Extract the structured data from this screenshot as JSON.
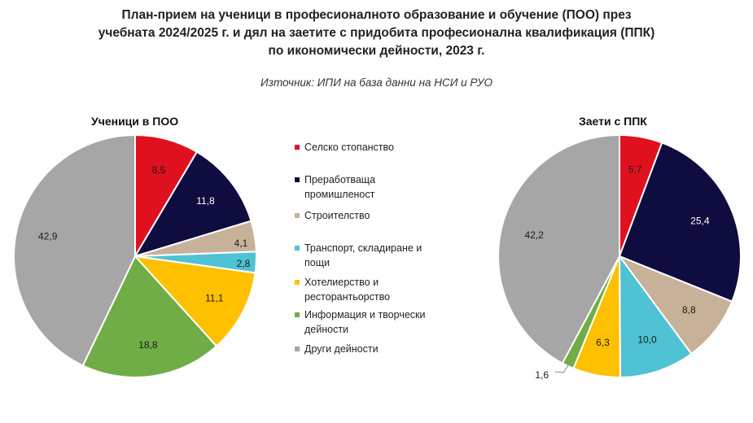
{
  "title_lines": [
    "План-прием на ученици в професионалното образование и обучение (ПОО) през",
    "учебната 2024/2025 г. и дял на заетите с придобита професионална квалификация (ППК)",
    "по икономически дейности, 2023 г."
  ],
  "source": "Източник: ИПИ на база данни на НСИ и РУО",
  "legend": [
    {
      "label": "Селско стопанство",
      "color": "#e0111f"
    },
    {
      "label": "Преработваща промишленост",
      "color": "#0f0c3f"
    },
    {
      "label": "Строителство",
      "color": "#c7b299"
    },
    {
      "label": "Транспорт, складиране и пощи",
      "color": "#4fc2d4"
    },
    {
      "label": "Хотелиерство и ресторантьорство",
      "color": "#ffc000"
    },
    {
      "label": "Информация и творчески дейности",
      "color": "#70ad47"
    },
    {
      "label": "Други дейности",
      "color": "#a6a6a6"
    }
  ],
  "chart_data": [
    {
      "type": "pie",
      "title": "Ученици в ПОО",
      "categories": [
        "Селско стопанство",
        "Преработваща промишленост",
        "Строителство",
        "Транспорт, складиране и пощи",
        "Хотелиерство и ресторантьорство",
        "Информация и творчески дейности",
        "Други дейности"
      ],
      "values": [
        8.5,
        11.8,
        4.1,
        2.8,
        11.1,
        18.8,
        42.9
      ],
      "labels": [
        "8,5",
        "11,8",
        "4,1",
        "2,8",
        "11,1",
        "18,8",
        "42,9"
      ],
      "colors": [
        "#e0111f",
        "#0f0c3f",
        "#c7b299",
        "#4fc2d4",
        "#ffc000",
        "#70ad47",
        "#a6a6a6"
      ],
      "label_colors": [
        "#1a1a1a",
        "#ffffff",
        "#1a1a1a",
        "#1a1a1a",
        "#1a1a1a",
        "#1a1a1a",
        "#1a1a1a"
      ]
    },
    {
      "type": "pie",
      "title": "Заети с ППК",
      "categories": [
        "Селско стопанство",
        "Преработваща промишленост",
        "Строителство",
        "Транспорт, складиране и пощи",
        "Хотелиерство и ресторантьорство",
        "Информация и творчески дейности",
        "Други дейности"
      ],
      "values": [
        5.7,
        25.4,
        8.8,
        10.0,
        6.3,
        1.6,
        42.2
      ],
      "labels": [
        "5,7",
        "25,4",
        "8,8",
        "10,0",
        "6,3",
        "1,6",
        "42,2"
      ],
      "colors": [
        "#e0111f",
        "#0f0c3f",
        "#c7b299",
        "#4fc2d4",
        "#ffc000",
        "#70ad47",
        "#a6a6a6"
      ],
      "label_colors": [
        "#1a1a1a",
        "#ffffff",
        "#1a1a1a",
        "#1a1a1a",
        "#1a1a1a",
        "#1a1a1a",
        "#1a1a1a"
      ]
    }
  ]
}
